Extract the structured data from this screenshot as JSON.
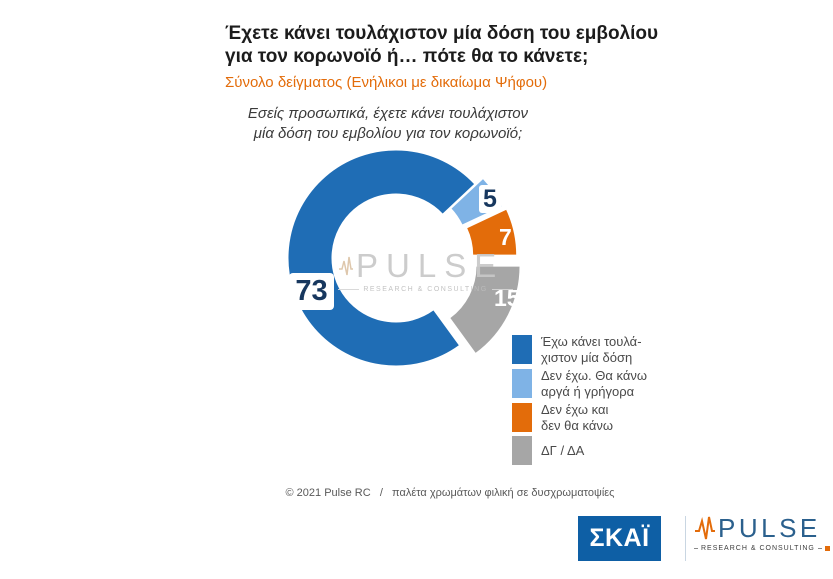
{
  "header": {
    "title_line1": "Έχετε κάνει τουλάχιστον μία δόση του εμβολίου",
    "title_line2": "για τον κορωνοϊό ή… πότε θα το κάνετε;",
    "subtitle": "Σύνολο δείγματος (Ενήλικοι με δικαίωμα Ψήφου)"
  },
  "question": {
    "line1": "Εσείς προσωπικά, έχετε κάνει τουλάχιστον",
    "line2": "μία δόση του εμβολίου για τον κορωνοϊό;"
  },
  "chart_data": {
    "type": "pie",
    "donut": true,
    "title": "Εσείς προσωπικά, έχετε κάνει τουλάχιστον μία δόση του εμβολίου για τον κορωνοϊό;",
    "start_angle_deg": 144,
    "legend_position": "right-bottom",
    "slices": [
      {
        "label": "Έχω κάνει τουλάχιστον μία δόση",
        "value": 73,
        "color": "#1F6DB5",
        "explode": 0
      },
      {
        "label": "Δεν έχω. Θα κάνω αργά ή γρήγορα",
        "value": 5,
        "color": "#7FB3E6",
        "explode": 10
      },
      {
        "label": "Δεν έχω και δεν θα κάνω",
        "value": 7,
        "color": "#E36C0A",
        "explode": 13
      },
      {
        "label": "ΔΓ / ΔΑ",
        "value": 15,
        "color": "#A6A6A6",
        "explode": 18
      }
    ]
  },
  "legend": {
    "items": [
      {
        "label": "Έχω κάνει τουλά-\nχιστον μία δόση"
      },
      {
        "label": "Δεν έχω. Θα κάνω\nαργά ή γρήγορα"
      },
      {
        "label": "Δεν έχω και\nδεν θα κάνω"
      },
      {
        "label": "ΔΓ / ΔΑ"
      }
    ]
  },
  "watermark": {
    "name": "PULSE",
    "subtitle": "RESEARCH & CONSULTING"
  },
  "footer": {
    "text": "© 2021 Pulse RC   /   παλέτα χρωμάτων φιλική σε δυσχρωματοψίες"
  },
  "logos": {
    "skai": "ΣΚΑΪ",
    "pulse_name": "PULSE",
    "pulse_subtitle": "RESEARCH & CONSULTING"
  },
  "colors": {
    "accent_orange": "#E36C0A",
    "dark_blue": "#1F6DB5",
    "light_blue": "#7FB3E6",
    "gray": "#A6A6A6",
    "skai_blue": "#0E5FA5",
    "value_label": "#17375E"
  }
}
